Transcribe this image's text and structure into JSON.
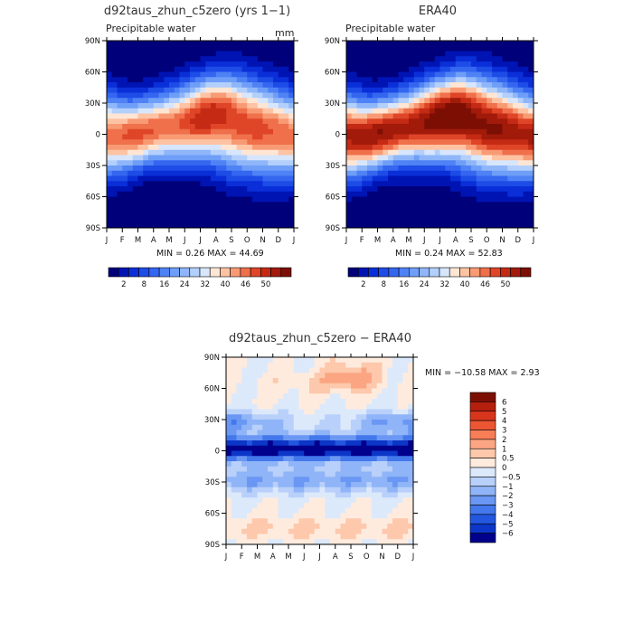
{
  "chart_data": [
    {
      "type": "heatmap",
      "title": "d92taus_zhun_c5zero (yrs 1−1)",
      "subtitle": "Precipitable water",
      "units": "mm",
      "stats": "MIN =    0.26  MAX =   44.69",
      "x_ticks": [
        "J",
        "F",
        "M",
        "A",
        "M",
        "J",
        "J",
        "A",
        "S",
        "O",
        "N",
        "D",
        "J"
      ],
      "y_ticks": [
        "90N",
        "60N",
        "30N",
        "0",
        "30S",
        "60S",
        "90S"
      ],
      "ylim": [
        -90,
        90
      ],
      "colorbar_labels": [
        "2",
        "8",
        "16",
        "24",
        "32",
        "40",
        "46",
        "50"
      ],
      "colorbar_colors": [
        "#00007a",
        "#0014b4",
        "#0a2fd8",
        "#1d4ce6",
        "#3566f0",
        "#4f82f5",
        "#6e9ef7",
        "#8fb6f9",
        "#b3cffb",
        "#d7e6fc",
        "#ffe6d4",
        "#fdc3a3",
        "#f89b75",
        "#ef704b",
        "#df4527",
        "#c42a14",
        "#a11a0a",
        "#7c0f04"
      ],
      "field": "precipitable water, peak ~44 mm near equator, shifted north in Jul-Sep"
    },
    {
      "type": "heatmap",
      "title": "ERA40",
      "subtitle": "Precipitable water",
      "stats": "MIN =    0.24  MAX =   52.83",
      "x_ticks": [
        "J",
        "F",
        "M",
        "A",
        "M",
        "J",
        "J",
        "A",
        "S",
        "O",
        "N",
        "D",
        "J"
      ],
      "y_ticks": [
        "90N",
        "60N",
        "30N",
        "0",
        "30S",
        "60S",
        "90S"
      ],
      "ylim": [
        -90,
        90
      ],
      "colorbar_labels": [
        "2",
        "8",
        "16",
        "24",
        "32",
        "40",
        "46",
        "50"
      ],
      "colorbar_colors": [
        "#00007a",
        "#0014b4",
        "#0a2fd8",
        "#1d4ce6",
        "#3566f0",
        "#4f82f5",
        "#6e9ef7",
        "#8fb6f9",
        "#b3cffb",
        "#d7e6fc",
        "#ffe6d4",
        "#fdc3a3",
        "#f89b75",
        "#ef704b",
        "#df4527",
        "#c42a14",
        "#a11a0a",
        "#7c0f04"
      ]
    },
    {
      "type": "heatmap",
      "title": "d92taus_zhun_c5zero − ERA40",
      "stats": "MIN = −10.58  MAX =    2.93",
      "x_ticks": [
        "J",
        "F",
        "M",
        "A",
        "M",
        "J",
        "J",
        "A",
        "S",
        "O",
        "N",
        "D",
        "J"
      ],
      "y_ticks": [
        "90N",
        "60N",
        "30N",
        "0",
        "30S",
        "60S",
        "90S"
      ],
      "ylim": [
        -90,
        90
      ],
      "colorbar_labels": [
        "6",
        "5",
        "4",
        "3",
        "2",
        "1",
        "0.5",
        "0",
        "−0.5",
        "−1",
        "−2",
        "−3",
        "−4",
        "−5",
        "−6"
      ],
      "colorbar_colors": [
        "#7c0f04",
        "#b5200e",
        "#d8361c",
        "#ec5634",
        "#f77e57",
        "#fca582",
        "#fdc8ab",
        "#ffebde",
        "#dce9fb",
        "#b8d0fa",
        "#8fb4f7",
        "#6a97f3",
        "#4378ec",
        "#2357e0",
        "#0c36c7",
        "#00008c"
      ]
    }
  ]
}
